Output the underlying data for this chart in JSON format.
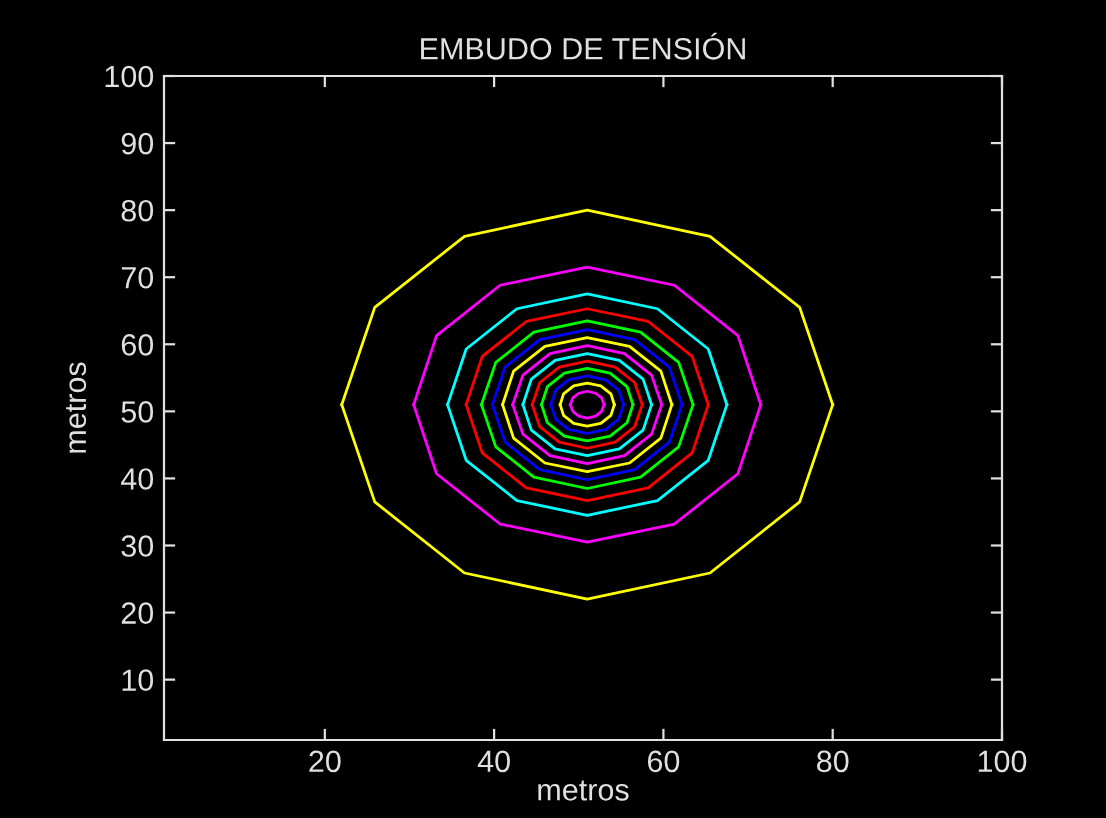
{
  "chart_data": {
    "type": "line",
    "title": "EMBUDO DE TENSIÓN",
    "xlabel": "metros",
    "ylabel": "metros",
    "xlim": [
      1,
      100
    ],
    "ylim": [
      1,
      100
    ],
    "xticks": [
      20,
      40,
      60,
      80,
      100
    ],
    "yticks": [
      10,
      20,
      30,
      40,
      50,
      60,
      70,
      80,
      90,
      100
    ],
    "grid": false,
    "marker": "none",
    "line_style": "solid",
    "series": [
      {
        "color": "#ffff00",
        "x": [
          22,
          25.9,
          36.5,
          51,
          65.5,
          76.1,
          80
        ],
        "values": [
          51,
          65.5,
          76.1,
          80,
          76.1,
          65.5,
          51
        ]
      },
      {
        "color": "#ffff00",
        "x": [
          22,
          25.9,
          36.5,
          51,
          65.5,
          76.1,
          80
        ],
        "values": [
          51,
          36.5,
          25.9,
          22,
          25.9,
          36.5,
          51
        ]
      },
      {
        "color": "#ff00ff",
        "x": [
          30.5,
          33.2,
          40.7,
          51,
          61.3,
          68.8,
          71.5
        ],
        "values": [
          51,
          61.3,
          68.8,
          71.5,
          68.8,
          61.3,
          51
        ]
      },
      {
        "color": "#ff00ff",
        "x": [
          30.5,
          33.2,
          40.7,
          51,
          61.3,
          68.8,
          71.5
        ],
        "values": [
          51,
          40.7,
          33.2,
          30.5,
          33.2,
          40.7,
          51
        ]
      },
      {
        "color": "#00ffff",
        "x": [
          34.5,
          36.7,
          42.7,
          51,
          59.3,
          65.3,
          67.5
        ],
        "values": [
          51,
          59.3,
          65.3,
          67.5,
          65.3,
          59.3,
          51
        ]
      },
      {
        "color": "#00ffff",
        "x": [
          34.5,
          36.7,
          42.7,
          51,
          59.3,
          65.3,
          67.5
        ],
        "values": [
          51,
          42.7,
          36.7,
          34.5,
          36.7,
          42.7,
          51
        ]
      },
      {
        "color": "#ff0000",
        "x": [
          36.7,
          38.6,
          43.8,
          51,
          58.2,
          63.4,
          65.3
        ],
        "values": [
          51,
          58.2,
          63.4,
          65.3,
          63.4,
          58.2,
          51
        ]
      },
      {
        "color": "#ff0000",
        "x": [
          36.7,
          38.6,
          43.8,
          51,
          58.2,
          63.4,
          65.3
        ],
        "values": [
          51,
          43.8,
          38.6,
          36.7,
          38.6,
          43.8,
          51
        ]
      },
      {
        "color": "#00ff00",
        "x": [
          38.5,
          40.2,
          44.7,
          51,
          57.3,
          61.8,
          63.5
        ],
        "values": [
          51,
          57.3,
          61.8,
          63.5,
          61.8,
          57.3,
          51
        ]
      },
      {
        "color": "#00ff00",
        "x": [
          38.5,
          40.2,
          44.7,
          51,
          57.3,
          61.8,
          63.5
        ],
        "values": [
          51,
          44.7,
          40.2,
          38.5,
          40.2,
          44.7,
          51
        ]
      },
      {
        "color": "#0000ff",
        "x": [
          39.8,
          41.3,
          45.4,
          51,
          56.6,
          60.7,
          62.2
        ],
        "values": [
          51,
          56.6,
          60.7,
          62.2,
          60.7,
          56.6,
          51
        ]
      },
      {
        "color": "#0000ff",
        "x": [
          39.8,
          41.3,
          45.4,
          51,
          56.6,
          60.7,
          62.2
        ],
        "values": [
          51,
          45.4,
          41.3,
          39.8,
          41.3,
          45.4,
          51
        ]
      },
      {
        "color": "#ffff00",
        "x": [
          41,
          42.3,
          46,
          51,
          56,
          59.7,
          61
        ],
        "values": [
          51,
          56,
          59.7,
          61,
          59.7,
          56,
          51
        ]
      },
      {
        "color": "#ffff00",
        "x": [
          41,
          42.3,
          46,
          51,
          56,
          59.7,
          61
        ],
        "values": [
          51,
          46,
          42.3,
          41,
          42.3,
          46,
          51
        ]
      },
      {
        "color": "#ff00ff",
        "x": [
          42.2,
          43.4,
          46.6,
          51,
          55.4,
          58.6,
          59.8
        ],
        "values": [
          51,
          55.4,
          58.6,
          59.8,
          58.6,
          55.4,
          51
        ]
      },
      {
        "color": "#ff00ff",
        "x": [
          42.2,
          43.4,
          46.6,
          51,
          55.4,
          58.6,
          59.8
        ],
        "values": [
          51,
          46.6,
          43.4,
          42.2,
          43.4,
          46.6,
          51
        ]
      },
      {
        "color": "#00ffff",
        "x": [
          43.4,
          44.4,
          47.2,
          51,
          54.8,
          57.6,
          58.6
        ],
        "values": [
          51,
          54.8,
          57.6,
          58.6,
          57.6,
          54.8,
          51
        ]
      },
      {
        "color": "#00ffff",
        "x": [
          43.4,
          44.4,
          47.2,
          51,
          54.8,
          57.6,
          58.6
        ],
        "values": [
          51,
          47.2,
          44.4,
          43.4,
          44.4,
          47.2,
          51
        ]
      },
      {
        "color": "#ff0000",
        "x": [
          44.5,
          45.4,
          47.7,
          51,
          54.3,
          56.6,
          57.5
        ],
        "values": [
          51,
          54.3,
          56.6,
          57.5,
          56.6,
          54.3,
          51
        ]
      },
      {
        "color": "#ff0000",
        "x": [
          44.5,
          45.4,
          47.7,
          51,
          54.3,
          56.6,
          57.5
        ],
        "values": [
          51,
          47.7,
          45.4,
          44.5,
          45.4,
          47.7,
          51
        ]
      },
      {
        "color": "#00ff00",
        "x": [
          45.6,
          46.3,
          48.3,
          51,
          53.7,
          55.7,
          56.4
        ],
        "values": [
          51,
          53.7,
          55.7,
          56.4,
          55.7,
          53.7,
          51
        ]
      },
      {
        "color": "#00ff00",
        "x": [
          45.6,
          46.3,
          48.3,
          51,
          53.7,
          55.7,
          56.4
        ],
        "values": [
          51,
          48.3,
          46.3,
          45.6,
          46.3,
          48.3,
          51
        ]
      },
      {
        "color": "#0000ff",
        "x": [
          46.7,
          47.3,
          48.8,
          51,
          53.2,
          54.7,
          55.3
        ],
        "values": [
          51,
          53.2,
          54.7,
          55.3,
          54.7,
          53.2,
          51
        ]
      },
      {
        "color": "#0000ff",
        "x": [
          46.7,
          47.3,
          48.8,
          51,
          53.2,
          54.7,
          55.3
        ],
        "values": [
          51,
          48.8,
          47.3,
          46.7,
          47.3,
          48.8,
          51
        ]
      },
      {
        "color": "#ffff00",
        "x": [
          47.8,
          48.2,
          49.4,
          51,
          52.6,
          53.8,
          54.2
        ],
        "values": [
          51,
          52.6,
          53.8,
          54.2,
          53.8,
          52.6,
          51
        ]
      },
      {
        "color": "#ffff00",
        "x": [
          47.8,
          48.2,
          49.4,
          51,
          52.6,
          53.8,
          54.2
        ],
        "values": [
          51,
          49.4,
          48.2,
          47.8,
          48.2,
          49.4,
          51
        ]
      },
      {
        "color": "#ff00ff",
        "x": [
          49,
          49.3,
          50,
          51,
          52,
          52.7,
          53
        ],
        "values": [
          51,
          52,
          52.7,
          53,
          52.7,
          52,
          51
        ]
      },
      {
        "color": "#ff00ff",
        "x": [
          49,
          49.3,
          50,
          51,
          52,
          52.7,
          53
        ],
        "values": [
          51,
          50,
          49.3,
          49,
          49.3,
          50,
          51
        ]
      }
    ]
  }
}
